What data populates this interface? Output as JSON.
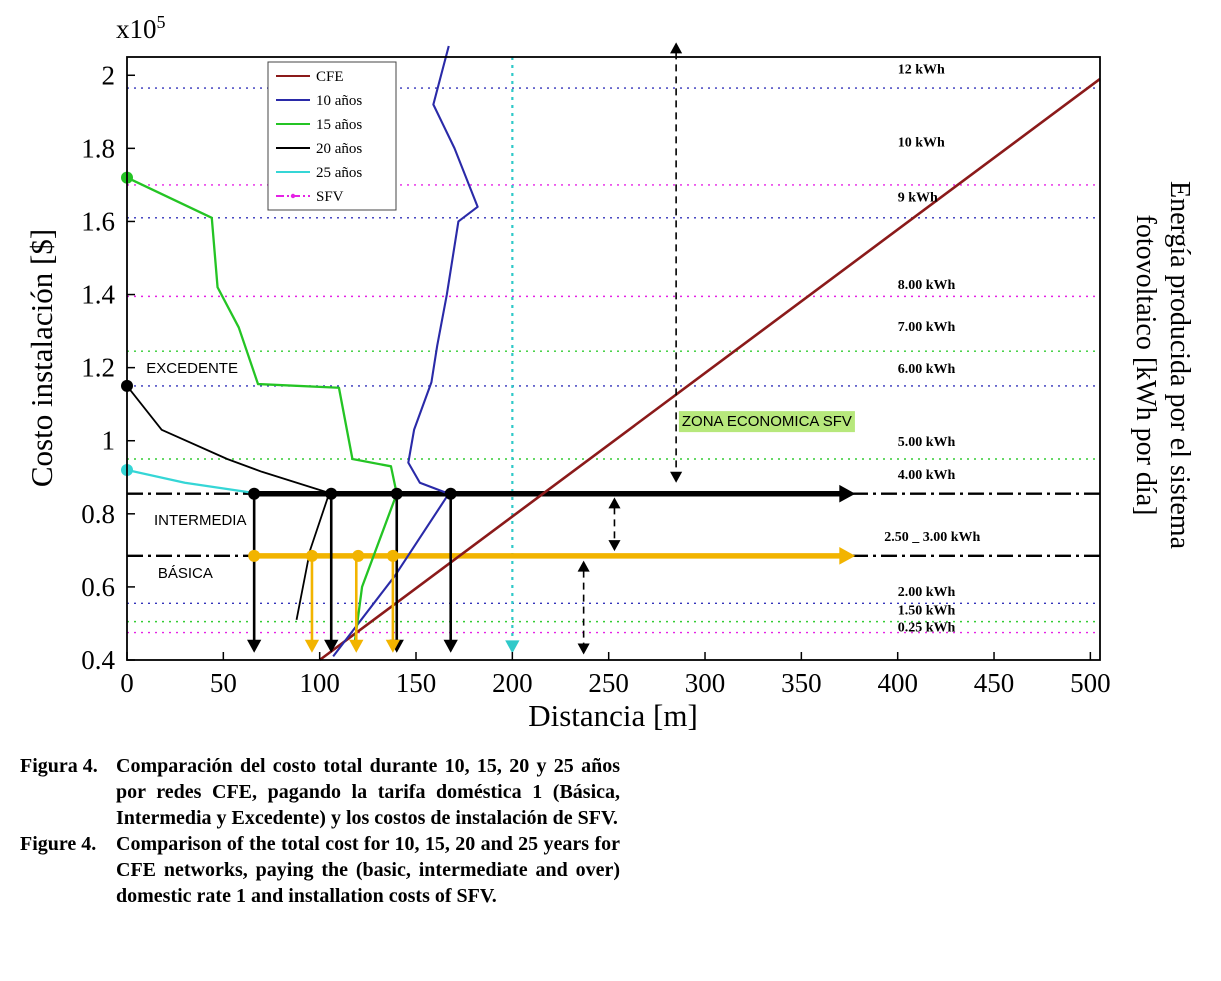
{
  "figure": {
    "exponent_base": "x10",
    "exponent_power": "5",
    "x_label": "Distancia [m]",
    "y_label": "Costo instalación [$]",
    "right_label_line1": "Energía producida por el sistema",
    "right_label_line2": "fotovoltaico [kWh por día]"
  },
  "caption": {
    "es_label": "Figura 4.",
    "es_text": "Comparación del costo total durante 10, 15, 20 y 25 años por redes CFE, pagando la tarifa doméstica 1 (Básica, Intermedia y Excedente) y los costos de instalación de SFV.",
    "en_label": "Figure 4.",
    "en_text": "Comparison of the total cost for 10, 15, 20 and 25 years for CFE networks, paying the (basic, intermediate and over) domestic rate 1 and installation costs of SFV."
  },
  "chart_data": {
    "type": "line",
    "title": "",
    "xlabel": "Distancia [m]",
    "ylabel": "Costo instalación [$] x10^5",
    "ylabel_right": "Energía producida por el sistema fotovoltaico [kWh por día]",
    "xlim": [
      0,
      505
    ],
    "ylim": [
      0.4,
      2.05
    ],
    "xticks": [
      0,
      50,
      100,
      150,
      200,
      250,
      300,
      350,
      400,
      450,
      500
    ],
    "yticks": [
      0.4,
      0.6,
      0.8,
      1,
      1.2,
      1.4,
      1.6,
      1.8,
      2
    ],
    "grid": false,
    "legend_position": "upper-left-inside",
    "legend": [
      {
        "label": "CFE",
        "color": "#8b1a1a",
        "style": "solid"
      },
      {
        "label": "10 años",
        "color": "#2a2aa8",
        "style": "solid"
      },
      {
        "label": "15 años",
        "color": "#24c424",
        "style": "solid"
      },
      {
        "label": "20 años",
        "color": "#000000",
        "style": "solid"
      },
      {
        "label": "25 años",
        "color": "#35d6d6",
        "style": "solid"
      },
      {
        "label": "SFV",
        "color": "#e522e5",
        "style": "dashdot"
      }
    ],
    "series": [
      {
        "name": "CFE",
        "color": "#8b1a1a",
        "width": 2.6,
        "points": [
          [
            100,
            0.4
          ],
          [
            505,
            1.99
          ]
        ]
      },
      {
        "name": "10 años",
        "color": "#2a2aa8",
        "width": 2.1,
        "points": [
          [
            167,
            2.08
          ],
          [
            159,
            1.92
          ],
          [
            170,
            1.8
          ],
          [
            182,
            1.64
          ],
          [
            172,
            1.6
          ],
          [
            166,
            1.4
          ],
          [
            161,
            1.26
          ],
          [
            158,
            1.16
          ],
          [
            149,
            1.03
          ],
          [
            146,
            0.94
          ],
          [
            152,
            0.885
          ],
          [
            167,
            0.855
          ],
          [
            139,
            0.63
          ],
          [
            107,
            0.41
          ]
        ]
      },
      {
        "name": "15 años",
        "color": "#24c424",
        "width": 2.3,
        "points": [
          [
            0,
            1.72
          ],
          [
            44,
            1.61
          ],
          [
            47,
            1.42
          ],
          [
            58,
            1.31
          ],
          [
            68,
            1.155
          ],
          [
            110,
            1.145
          ],
          [
            117,
            0.95
          ],
          [
            137,
            0.93
          ],
          [
            140,
            0.855
          ],
          [
            122,
            0.6
          ],
          [
            118,
            0.44
          ]
        ]
      },
      {
        "name": "20 años",
        "color": "#000000",
        "width": 1.8,
        "points": [
          [
            0,
            1.15
          ],
          [
            18,
            1.03
          ],
          [
            52,
            0.95
          ],
          [
            70,
            0.915
          ],
          [
            105,
            0.857
          ],
          [
            95,
            0.7
          ],
          [
            88,
            0.51
          ]
        ]
      },
      {
        "name": "25 años",
        "color": "#35d6d6",
        "width": 2.3,
        "points": [
          [
            0,
            0.92
          ],
          [
            30,
            0.885
          ],
          [
            66,
            0.857
          ]
        ]
      }
    ],
    "reference_lines": [
      {
        "y": 1.965,
        "color": "#3333bb",
        "style": "dotted"
      },
      {
        "y": 1.7,
        "color": "#e522e5",
        "style": "dotted"
      },
      {
        "y": 1.61,
        "color": "#3333bb",
        "style": "dotted"
      },
      {
        "y": 1.395,
        "color": "#e522e5",
        "style": "dotted"
      },
      {
        "y": 1.245,
        "color": "#33cc33",
        "style": "dotted"
      },
      {
        "y": 1.15,
        "color": "#3333bb",
        "style": "dotted"
      },
      {
        "y": 0.95,
        "color": "#33cc33",
        "style": "dotted"
      },
      {
        "y": 0.555,
        "color": "#3333bb",
        "style": "dotted"
      },
      {
        "y": 0.505,
        "color": "#33cc33",
        "style": "dotted"
      },
      {
        "y": 0.475,
        "color": "#e522e5",
        "style": "dotted"
      }
    ],
    "kwh_labels": [
      {
        "text": "12 kWh",
        "x": 400,
        "y": 2.005
      },
      {
        "text": "10 kWh",
        "x": 400,
        "y": 1.805
      },
      {
        "text": "9 kWh",
        "x": 400,
        "y": 1.655
      },
      {
        "text": "8.00 kWh",
        "x": 400,
        "y": 1.415
      },
      {
        "text": "7.00 kWh",
        "x": 400,
        "y": 1.3
      },
      {
        "text": "6.00 kWh",
        "x": 400,
        "y": 1.185
      },
      {
        "text": "5.00 kWh",
        "x": 400,
        "y": 0.985
      },
      {
        "text": "4.00 kWh",
        "x": 400,
        "y": 0.895
      },
      {
        "text": "2.50 _ 3.00 kWh",
        "x": 393,
        "y": 0.725
      },
      {
        "text": "2.00 kWh",
        "x": 400,
        "y": 0.575
      },
      {
        "text": "1.50 kWh",
        "x": 400,
        "y": 0.525
      },
      {
        "text": "0.25 kWh",
        "x": 400,
        "y": 0.478
      }
    ],
    "threshold_lines": [
      {
        "y": 0.855,
        "line_color": "#000000",
        "arrow_color": "#000000",
        "arrow_from": 66,
        "arrow_to": 378
      },
      {
        "y": 0.685,
        "line_color": "#000000",
        "arrow_color": "#f2b400",
        "arrow_from": 66,
        "arrow_to": 378
      }
    ],
    "markers": [
      {
        "x": 0,
        "y": 1.72,
        "color": "#24c424"
      },
      {
        "x": 0,
        "y": 1.15,
        "color": "#000000"
      },
      {
        "x": 0,
        "y": 0.92,
        "color": "#35d6d6"
      },
      {
        "x": 66,
        "y": 0.855,
        "color": "#000000"
      },
      {
        "x": 106,
        "y": 0.855,
        "color": "#000000"
      },
      {
        "x": 140,
        "y": 0.855,
        "color": "#000000"
      },
      {
        "x": 168,
        "y": 0.855,
        "color": "#000000"
      },
      {
        "x": 66,
        "y": 0.685,
        "color": "#f2b400"
      },
      {
        "x": 96,
        "y": 0.685,
        "color": "#f2b400"
      },
      {
        "x": 120,
        "y": 0.685,
        "color": "#f2b400"
      },
      {
        "x": 138,
        "y": 0.685,
        "color": "#f2b400"
      }
    ],
    "down_arrows": [
      {
        "x": 66,
        "y_from": 0.855,
        "y_to": 0.42,
        "color": "#000000"
      },
      {
        "x": 106,
        "y_from": 0.855,
        "y_to": 0.42,
        "color": "#000000"
      },
      {
        "x": 140,
        "y_from": 0.855,
        "y_to": 0.42,
        "color": "#000000"
      },
      {
        "x": 168,
        "y_from": 0.855,
        "y_to": 0.42,
        "color": "#000000"
      },
      {
        "x": 96,
        "y_from": 0.685,
        "y_to": 0.42,
        "color": "#f2b400"
      },
      {
        "x": 119,
        "y_from": 0.685,
        "y_to": 0.42,
        "color": "#f2b400"
      },
      {
        "x": 138,
        "y_from": 0.685,
        "y_to": 0.42,
        "color": "#f2b400"
      }
    ],
    "vertical_line": {
      "x": 200,
      "color": "#2fc9c9",
      "style": "dotted",
      "arrow_y": 0.418
    },
    "dashed_arrows": [
      {
        "x": 285,
        "y1": 2.09,
        "y2": 0.885,
        "heads": "both"
      },
      {
        "x": 253,
        "y1": 0.845,
        "y2": 0.698,
        "heads": "both"
      },
      {
        "x": 237,
        "y1": 0.672,
        "y2": 0.415,
        "heads": "both"
      }
    ],
    "annotations": [
      {
        "text": "EXCEDENTE",
        "x": 10,
        "y": 1.185,
        "bg": ""
      },
      {
        "text": "INTERMEDIA",
        "x": 14,
        "y": 0.77,
        "bg": ""
      },
      {
        "text": "BÁSICA",
        "x": 16,
        "y": 0.625,
        "bg": ""
      },
      {
        "text": "ZONA ECONOMICA SFV",
        "x": 288,
        "y": 1.04,
        "bg": "#b7e87c"
      }
    ]
  }
}
